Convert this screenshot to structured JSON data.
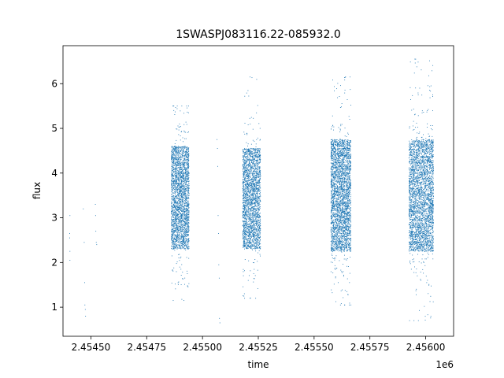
{
  "chart_data": {
    "type": "scatter",
    "title": "1SWASPJ083116.22-085932.0",
    "xlabel": "time",
    "ylabel": "flux",
    "x_offset_label": "1e6",
    "xlim": [
      2454375,
      2456125
    ],
    "ylim": [
      0.35,
      6.85
    ],
    "x_ticks": [
      2454500,
      2454750,
      2455000,
      2455250,
      2455500,
      2455750,
      2456000
    ],
    "x_tick_labels": [
      "2.45450",
      "2.45475",
      "2.45500",
      "2.45525",
      "2.45550",
      "2.45575",
      "2.45600"
    ],
    "y_ticks": [
      1,
      2,
      3,
      4,
      5,
      6
    ],
    "y_tick_labels": [
      "1",
      "2",
      "3",
      "4",
      "5",
      "6"
    ],
    "marker_color": "#1f77b4",
    "grid": false,
    "legend": "none",
    "sparse_points": {
      "x": [
        2454405,
        2454405,
        2454406,
        2454406,
        2454406,
        2454466,
        2454470,
        2454472,
        2454473,
        2454475,
        2454476,
        2454520,
        2454521,
        2454522,
        2454524,
        2454526,
        2455065,
        2455067,
        2455068,
        2455070,
        2455072,
        2455073,
        2455075,
        2455076,
        2455078
      ],
      "y": [
        2.65,
        2.55,
        2.25,
        2.05,
        3.05,
        3.2,
        2.45,
        1.55,
        1.05,
        0.95,
        0.8,
        3.3,
        3.05,
        2.7,
        2.45,
        2.4,
        4.75,
        4.55,
        4.15,
        3.05,
        2.65,
        1.95,
        1.65,
        0.75,
        0.65
      ]
    },
    "clusters": [
      {
        "x_range": [
          2454860,
          2454940
        ],
        "core_y": [
          2.3,
          4.6
        ],
        "outlier_y": [
          1.15,
          5.5
        ],
        "count": 2600
      },
      {
        "x_range": [
          2455180,
          2455260
        ],
        "core_y": [
          2.3,
          4.55
        ],
        "outlier_y": [
          1.2,
          6.15
        ],
        "count": 2400
      },
      {
        "x_range": [
          2455575,
          2455665
        ],
        "core_y": [
          2.25,
          4.75
        ],
        "outlier_y": [
          1.05,
          6.15
        ],
        "count": 3000
      },
      {
        "x_range": [
          2455925,
          2456035
        ],
        "core_y": [
          2.25,
          4.75
        ],
        "outlier_y": [
          0.7,
          6.55
        ],
        "count": 3200
      }
    ]
  }
}
